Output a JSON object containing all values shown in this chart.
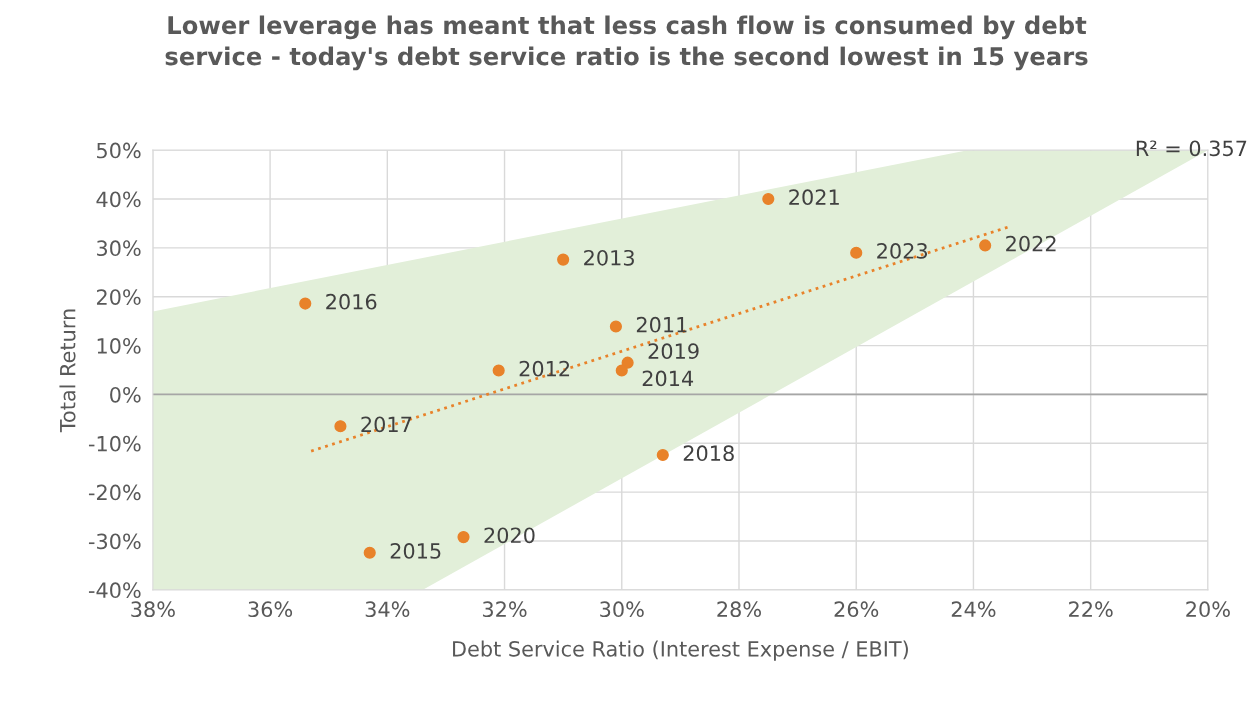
{
  "chart_data": {
    "type": "scatter",
    "title": "Lower leverage has meant that less cash flow is consumed by debt\nservice - today's debt service ratio is the second lowest in 15 years",
    "xlabel": "Debt Service Ratio (Interest Expense / EBIT)",
    "ylabel": "Total Return",
    "x": [
      27.5,
      26.0,
      23.8,
      31.0,
      35.4,
      30.1,
      29.9,
      30.0,
      32.1,
      34.8,
      29.3,
      32.7,
      34.3
    ],
    "values": [
      40,
      29,
      30.5,
      27.6,
      18.6,
      13.9,
      6.5,
      4.9,
      4.9,
      -6.5,
      -12.4,
      -29.2,
      -32.4
    ],
    "color": "#e8822a",
    "marker": "circle",
    "series": [
      {
        "type": "area",
        "color": "#e2efd9",
        "marker": "none",
        "x": [
          38,
          24.1,
          20,
          33.4,
          38
        ],
        "values": [
          17,
          50,
          50,
          -40,
          -40
        ]
      },
      {
        "type": "line",
        "color": "#e8822a",
        "marker": "none",
        "line_style": "dotted",
        "x": [
          35.3,
          23.4
        ],
        "values": [
          -11.6,
          34.3
        ]
      }
    ],
    "annotations": [
      {
        "text": "2021",
        "x": 27.5,
        "y": 40
      },
      {
        "text": "2023",
        "x": 26.0,
        "y": 29
      },
      {
        "text": "2022",
        "x": 23.8,
        "y": 30.5
      },
      {
        "text": "2013",
        "x": 31.0,
        "y": 27.6
      },
      {
        "text": "2016",
        "x": 35.4,
        "y": 18.6
      },
      {
        "text": "2011",
        "x": 30.1,
        "y": 13.9
      },
      {
        "text": "2019",
        "x": 29.9,
        "y": 6.5
      },
      {
        "text": "2014",
        "x": 30.0,
        "y": 4.9
      },
      {
        "text": "2012",
        "x": 32.1,
        "y": 4.9
      },
      {
        "text": "2017",
        "x": 34.8,
        "y": -6.5
      },
      {
        "text": "2018",
        "x": 29.3,
        "y": -12.4
      },
      {
        "text": "2020",
        "x": 32.7,
        "y": -29.2
      },
      {
        "text": "2015",
        "x": 34.3,
        "y": -32.4
      },
      "R² = 0.357"
    ],
    "xlim": [
      38,
      20
    ],
    "ylim": [
      -40,
      50
    ],
    "xticks": [
      {
        "value": 38,
        "label": "38%"
      },
      {
        "value": 36,
        "label": "36%"
      },
      {
        "value": 34,
        "label": "34%"
      },
      {
        "value": 32,
        "label": "32%"
      },
      {
        "value": 30,
        "label": "30%"
      },
      {
        "value": 28,
        "label": "28%"
      },
      {
        "value": 26,
        "label": "26%"
      },
      {
        "value": 24,
        "label": "24%"
      },
      {
        "value": 22,
        "label": "22%"
      },
      {
        "value": 20,
        "label": "20%"
      }
    ],
    "yticks": [
      {
        "value": -40,
        "label": "-40%"
      },
      {
        "value": -30,
        "label": "-30%"
      },
      {
        "value": -20,
        "label": "-20%"
      },
      {
        "value": -10,
        "label": "-10%"
      },
      {
        "value": 0,
        "label": "0%"
      },
      {
        "value": 10,
        "label": "10%"
      },
      {
        "value": 20,
        "label": "20%"
      },
      {
        "value": 30,
        "label": "30%"
      },
      {
        "value": 40,
        "label": "40%"
      },
      {
        "value": 50,
        "label": "50%"
      }
    ],
    "grid": true,
    "ref_lines": [
      {
        "axis": "y",
        "value": 0,
        "color": "#a6a6a6"
      }
    ]
  }
}
